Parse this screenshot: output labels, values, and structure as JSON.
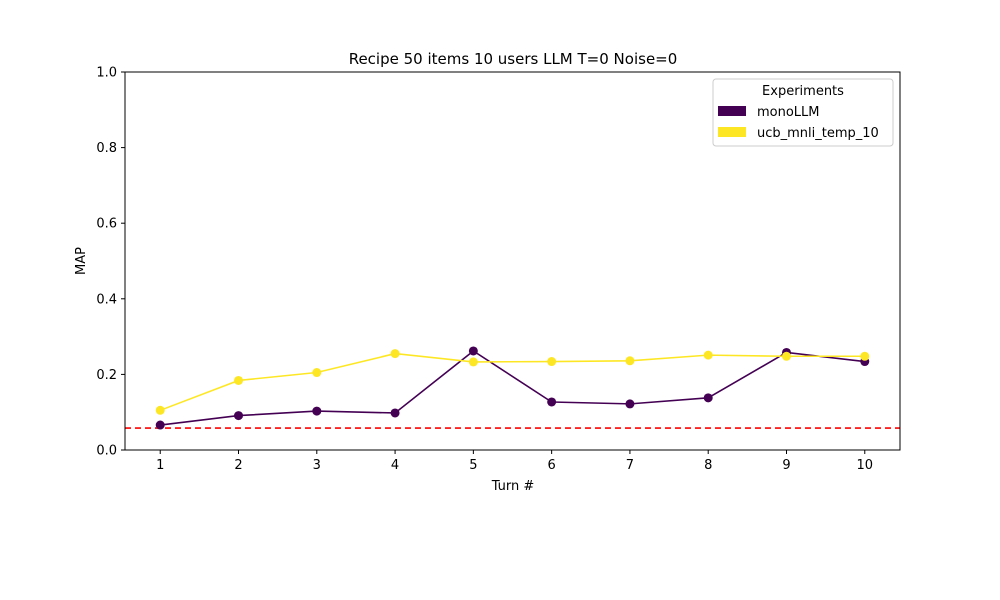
{
  "chart_data": {
    "type": "line",
    "title": "Recipe 50 items 10 users LLM T=0 Noise=0",
    "xlabel": "Turn #",
    "ylabel": "MAP",
    "x": [
      1,
      2,
      3,
      4,
      5,
      6,
      7,
      8,
      9,
      10
    ],
    "xlim": [
      0.55,
      10.45
    ],
    "ylim": [
      0.0,
      1.0
    ],
    "yticks": [
      0.0,
      0.2,
      0.4,
      0.6,
      0.8,
      1.0
    ],
    "ytick_labels": [
      "0.0",
      "0.2",
      "0.4",
      "0.6",
      "0.8",
      "1.0"
    ],
    "xtick_labels": [
      "1",
      "2",
      "3",
      "4",
      "5",
      "6",
      "7",
      "8",
      "9",
      "10"
    ],
    "grid": false,
    "legend_title": "Experiments",
    "legend_position": "top-right",
    "series": [
      {
        "name": "monoLLM",
        "color": "#440154",
        "marker": "circle",
        "values": [
          0.066,
          0.091,
          0.103,
          0.098,
          0.262,
          0.127,
          0.122,
          0.138,
          0.258,
          0.234
        ]
      },
      {
        "name": "ucb_mnli_temp_10",
        "color": "#fde725",
        "marker": "circle",
        "values": [
          0.105,
          0.184,
          0.205,
          0.255,
          0.233,
          0.234,
          0.236,
          0.251,
          0.248,
          0.248
        ]
      }
    ],
    "baseline": {
      "value": 0.058,
      "color": "#ff0000",
      "style": "dashed"
    }
  }
}
